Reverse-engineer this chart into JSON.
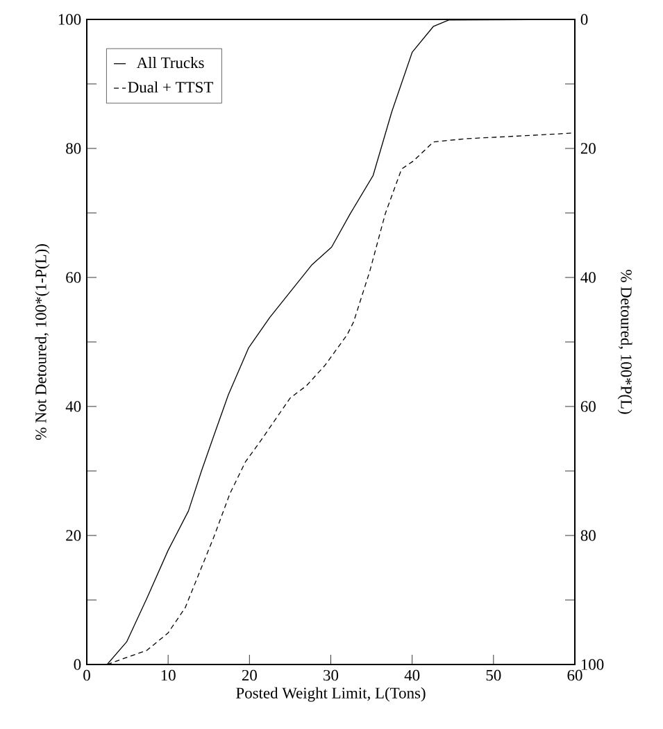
{
  "chart_data": {
    "type": "line",
    "xlabel": "Posted Weight Limit, L(Tons)",
    "ylabel": "% Not Detoured, 100*(1-P(L))",
    "y2label": "% Detoured, 100*P(L)",
    "xlim": [
      0,
      60
    ],
    "xticks": [
      0,
      10,
      20,
      30,
      40,
      50,
      60
    ],
    "ylim": [
      0,
      100
    ],
    "yticks": [
      0,
      {
        "value": 10,
        "label": null
      },
      20,
      {
        "value": 30,
        "label": null
      },
      40,
      {
        "value": 50,
        "label": null
      },
      60,
      {
        "value": 70,
        "label": null
      },
      80,
      {
        "value": 90,
        "label": null
      },
      100
    ],
    "y2lim": [
      100,
      0
    ],
    "y2ticks": [
      100,
      {
        "value": 90,
        "label": null
      },
      80,
      {
        "value": 70,
        "label": null
      },
      60,
      {
        "value": 50,
        "label": null
      },
      40,
      {
        "value": 30,
        "label": null
      },
      20,
      {
        "value": 10,
        "label": null
      },
      0
    ],
    "legend": "top left",
    "marker": "none",
    "grid": false,
    "series": [
      {
        "name": "All Trucks",
        "color": "#000000",
        "line_style": "solid",
        "x": [
          2.5,
          4.9,
          7.4,
          10,
          12.5,
          14.1,
          15.6,
          17.4,
          19.9,
          22.5,
          27.7,
          30.1,
          32.4,
          35.2,
          37.5,
          40,
          42.6,
          44.5,
          60
        ],
        "values": [
          0,
          3.5,
          10.3,
          17.7,
          23.8,
          30,
          35.4,
          41.8,
          49.1,
          53.8,
          62,
          64.7,
          69.9,
          75.8,
          85.7,
          94.9,
          98.9,
          99.9,
          100
        ]
      },
      {
        "name": "Dual + TTST",
        "color": "#000000",
        "line_style": "dashed",
        "x": [
          2.5,
          4.7,
          7.4,
          10,
          12.1,
          13.7,
          15.6,
          17.6,
          19.5,
          21.5,
          25,
          27,
          29.3,
          32,
          32.8,
          34.8,
          36.7,
          38.7,
          40.2,
          42.6,
          46.5,
          54.3,
          60
        ],
        "values": [
          0,
          1,
          2.2,
          4.9,
          8.8,
          13.8,
          19.7,
          26.5,
          31.4,
          34.9,
          41.3,
          43.2,
          46.4,
          51.1,
          53.1,
          61,
          69.9,
          76.8,
          78.1,
          81,
          81.5,
          82,
          82.4
        ]
      }
    ]
  }
}
